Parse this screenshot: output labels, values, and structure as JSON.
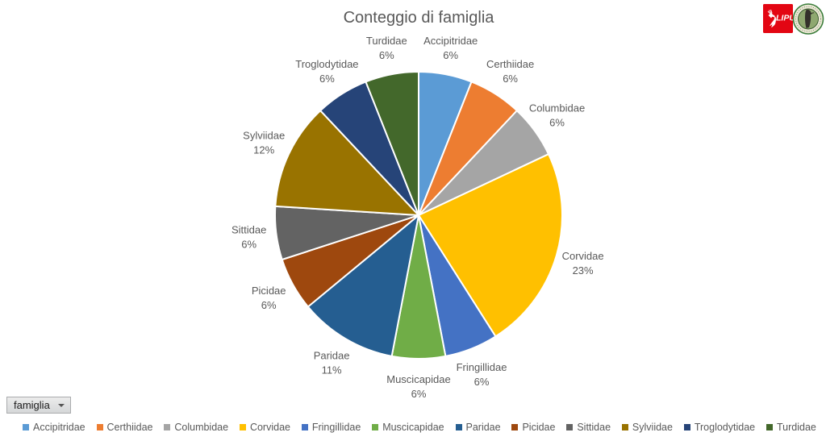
{
  "title": "Conteggio di famiglia",
  "field_button": {
    "label": "famiglia"
  },
  "logos": {
    "lipu_text": "LIPU",
    "lipu_red": "#e30613",
    "badge_ring_green": "#3a7d3a",
    "badge_fill_green": "#8aa express86a"
  },
  "chart_data": {
    "type": "pie",
    "title": "Conteggio di famiglia",
    "categories": [
      "Accipitridae",
      "Certhiidae",
      "Columbidae",
      "Corvidae",
      "Fringillidae",
      "Muscicapidae",
      "Paridae",
      "Picidae",
      "Sittidae",
      "Sylviidae",
      "Troglodytidae",
      "Turdidae"
    ],
    "values": [
      6,
      6,
      6,
      23,
      6,
      6,
      11,
      6,
      6,
      12,
      6,
      6
    ],
    "unit": "%",
    "colors": [
      "#5B9BD5",
      "#ED7D31",
      "#A5A5A5",
      "#FFC000",
      "#4472C4",
      "#70AD47",
      "#255E91",
      "#9E480E",
      "#636363",
      "#997300",
      "#264478",
      "#43682B"
    ],
    "label_text_color": "#595959",
    "start_angle_deg": 0,
    "direction": "clockwise",
    "legend_position": "bottom",
    "labels": "category name + percent, outside slices"
  }
}
